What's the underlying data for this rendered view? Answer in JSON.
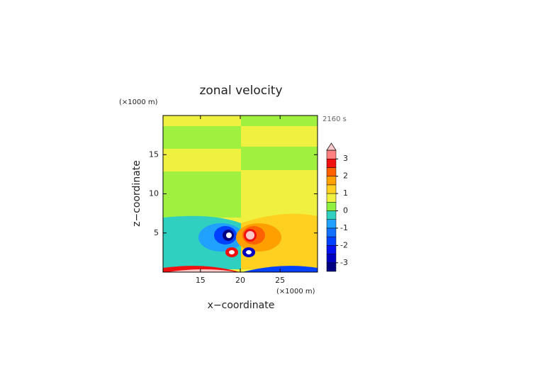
{
  "chart_data": {
    "type": "contour",
    "title": "zonal velocity",
    "x_label": "x−coordinate",
    "y_label": "z−coordinate",
    "x_unit": "(×1000 m)",
    "y_unit": "(×1000 m)",
    "time_label": "2160 s",
    "xlim": [
      10.3,
      29.7
    ],
    "xticks": [
      15,
      20,
      25
    ],
    "ylim": [
      0,
      20
    ],
    "yticks": [
      5,
      10,
      15
    ],
    "colorbar": {
      "levels": [
        -3.5,
        -3,
        -2.5,
        -2,
        -1.5,
        -1,
        -0.5,
        0,
        0.5,
        1,
        1.5,
        2,
        2.5,
        3,
        3.5
      ],
      "colors": [
        "#000080",
        "#0000c0",
        "#0010f0",
        "#0040ff",
        "#1070ff",
        "#20a0ff",
        "#30d0c0",
        "#90f040",
        "#f0f040",
        "#ffd020",
        "#ffa000",
        "#ff6000",
        "#f01010",
        "#ff8080"
      ],
      "extend_color": "#ffc8c8",
      "ticks": [
        -3,
        -2,
        -1,
        0,
        1,
        2,
        3
      ]
    }
  }
}
